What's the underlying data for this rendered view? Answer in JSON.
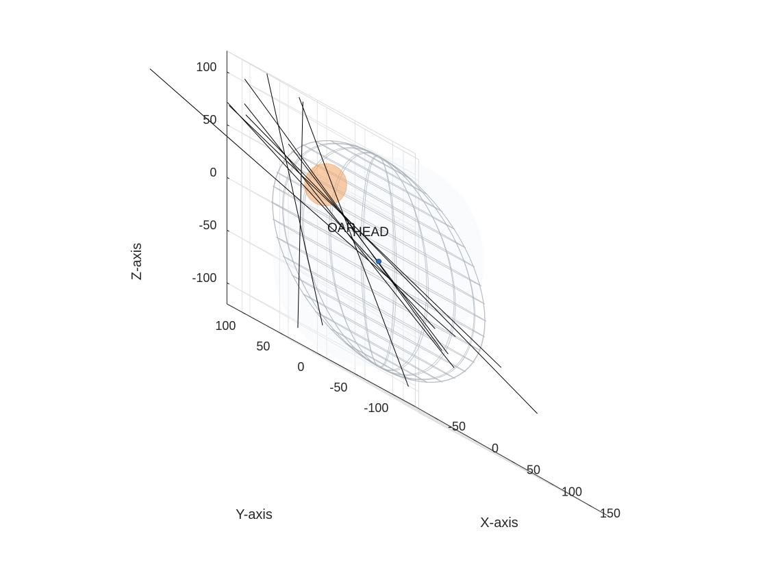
{
  "chart_data": {
    "type": "scatter",
    "subtype": "3d-wireframe",
    "title": "",
    "xlabel": "X-axis",
    "ylabel": "Y-axis",
    "zlabel": "Z-axis",
    "xticks": [
      -50,
      0,
      50,
      100,
      150
    ],
    "yticks": [
      -100,
      -50,
      0,
      50,
      100
    ],
    "zticks": [
      -100,
      -50,
      0,
      50,
      100
    ],
    "xlim": [
      -80,
      170
    ],
    "ylim": [
      -130,
      120
    ],
    "zlim": [
      -120,
      120
    ],
    "grid": true,
    "view": "oblique 3-D",
    "head": {
      "label": "HEAD",
      "center": [
        0,
        0,
        0
      ],
      "radii": [
        100,
        100,
        100
      ],
      "color": "#aab0b8"
    },
    "oar": {
      "label": "OAR",
      "center": [
        -25,
        45,
        45
      ],
      "radius": 20,
      "color": "#f4a460"
    },
    "isocenter": {
      "position": [
        0,
        0,
        0
      ],
      "color": "#2e6fb5"
    },
    "beams": [
      {
        "start": [
          -92,
          210,
          63
        ],
        "end": [
          100,
          0,
          -30
        ]
      },
      {
        "start": [
          10,
          130,
          65
        ],
        "end": [
          120,
          30,
          -50
        ]
      },
      {
        "start": [
          -40,
          160,
          72
        ],
        "end": [
          103,
          30,
          -33
        ]
      },
      {
        "start": [
          -16,
          162,
          80
        ],
        "end": [
          118,
          20,
          -60
        ]
      },
      {
        "start": [
          -51,
          126,
          103
        ],
        "end": [
          116,
          34,
          -50
        ]
      },
      {
        "start": [
          -27,
          149,
          70
        ],
        "end": [
          140,
          -68,
          -60
        ]
      },
      {
        "start": [
          -24,
          124,
          120
        ],
        "end": [
          -28,
          46,
          -90
        ]
      },
      {
        "start": [
          -34,
          66,
          112
        ],
        "end": [
          -19,
          88,
          -105
        ]
      },
      {
        "start": [
          -42,
          63,
          114
        ],
        "end": [
          80,
          42,
          -102
        ]
      },
      {
        "start": [
          -38,
          160,
          70
        ],
        "end": [
          140,
          -20,
          -35
        ]
      }
    ]
  }
}
